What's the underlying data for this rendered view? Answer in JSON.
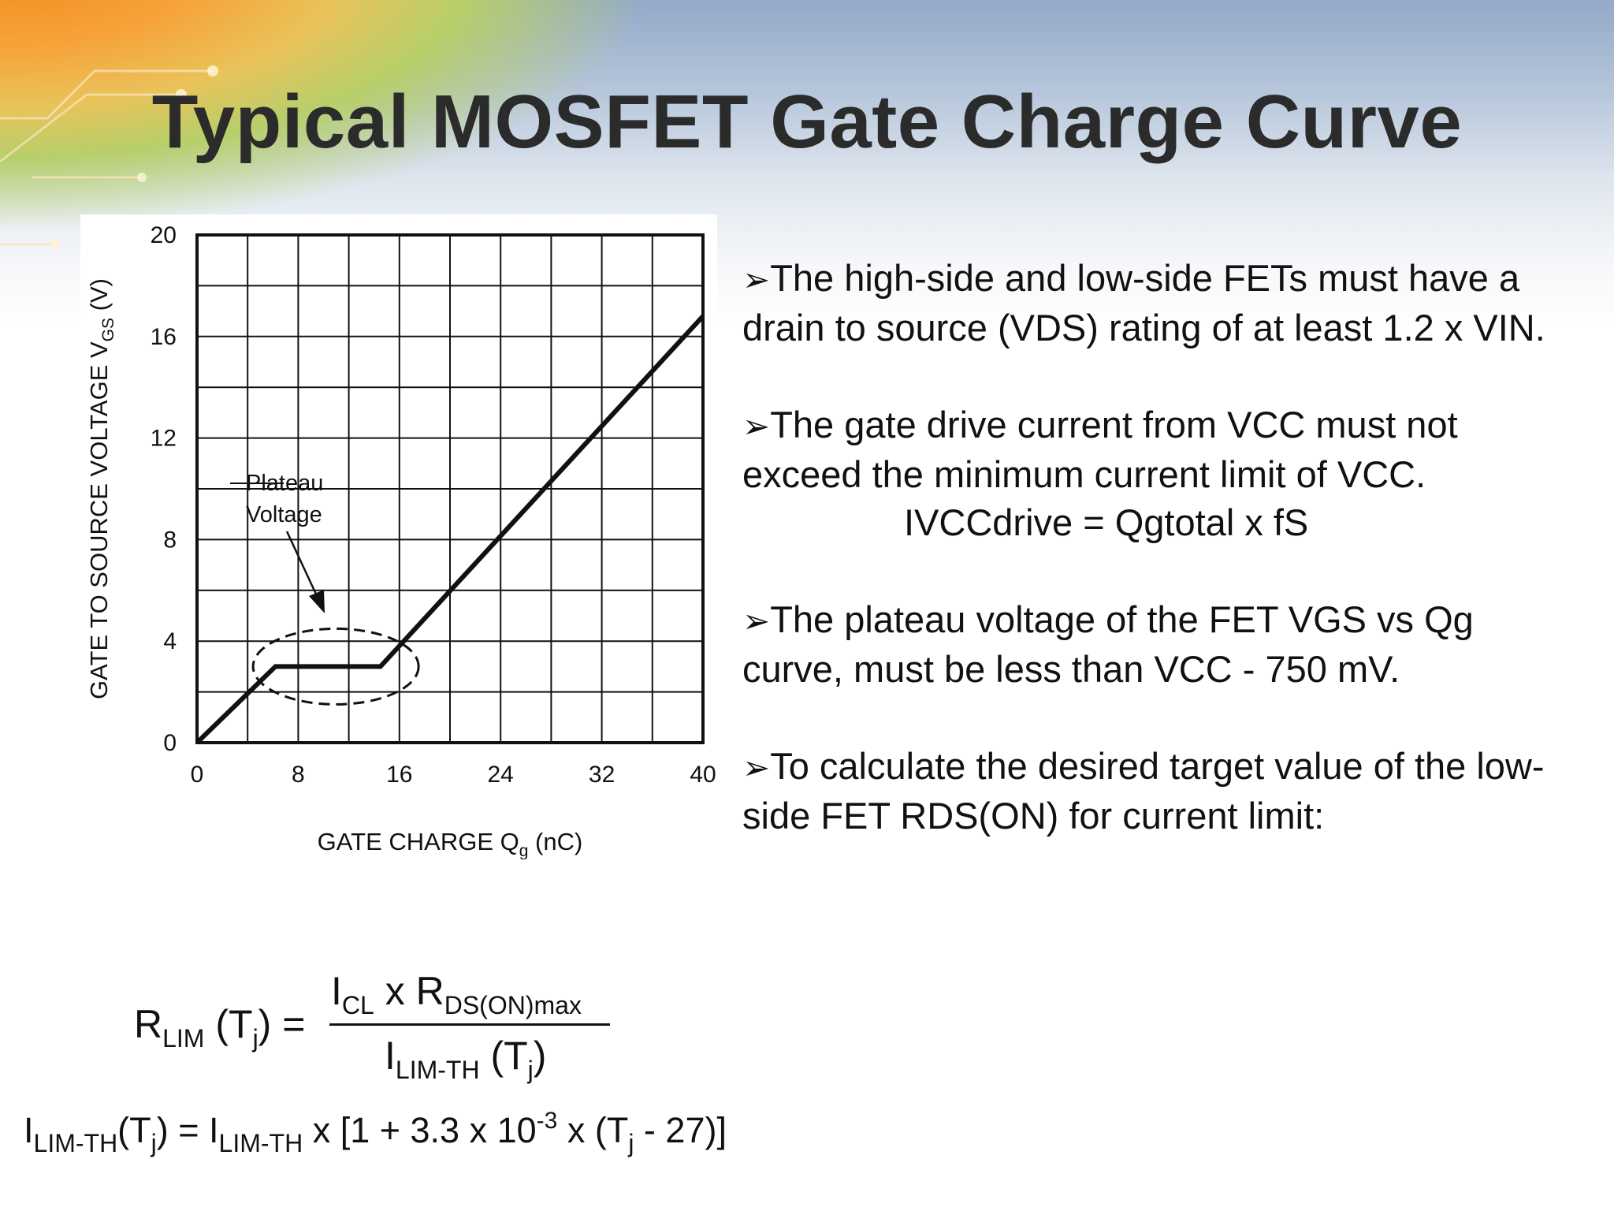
{
  "slide": {
    "title": "Typical MOSFET Gate Charge Curve",
    "colors": {
      "accent_orange": "#f28a1c",
      "sky_blue": "#93a9c9",
      "title_text": "#2b2b2b"
    }
  },
  "chart_data": {
    "type": "line",
    "title": "",
    "xlabel": "GATE CHARGE Qg (nC)",
    "ylabel": "GATE TO SOURCE VOLTAGE VGS (V)",
    "xlim": [
      0,
      40
    ],
    "ylim": [
      0,
      20
    ],
    "x_ticks": [
      "0",
      "8",
      "16",
      "24",
      "32",
      "40"
    ],
    "y_ticks": [
      "0",
      "4",
      "8",
      "12",
      "16",
      "20"
    ],
    "grid": true,
    "series": [
      {
        "x": [
          0,
          6.2,
          14.5,
          40
        ],
        "y": [
          0,
          3.0,
          3.0,
          16.8
        ]
      }
    ],
    "annotation": {
      "line1": "Plateau",
      "line2": "Voltage"
    }
  },
  "bullets": [
    {
      "text": "The high-side and low-side FETs must have a drain to source (VDS) rating of at least 1.2 x VIN."
    },
    {
      "text": "The gate drive current from VCC must not exceed the minimum  current limit of VCC.",
      "equation": "IVCCdrive = Qgtotal x fS"
    },
    {
      "text": "The plateau voltage of the FET VGS vs Qg curve, must be less than VCC - 750 mV."
    },
    {
      "text": "To calculate the desired target value of the low-side FET RDS(ON) for current limit:"
    }
  ],
  "formula": {
    "r": "R",
    "r_sub": "LIM",
    "tj_open": "(T",
    "tj_sub": "j",
    "tj_close": ") =",
    "num_i": "I",
    "num_i_sub": "CL",
    "num_x": " x R",
    "num_r_sub": "DS(ON)max",
    "den_i": "I",
    "den_i_sub": "LIM-TH",
    "den_tj_open": " (T",
    "den_tj_sub": "j",
    "den_tj_close": ")",
    "l2_i": "I",
    "l2_i_sub": "LIM-TH",
    "l2_tj_open": "(T",
    "l2_tj_sub": "j",
    "l2_eq": ") = I",
    "l2_i2_sub": "LIM-TH",
    "l2_mid": " x [1 + 3.3 x 10",
    "l2_exp": "-3",
    "l2_tail_open": " x (T",
    "l2_tail_sub": "j",
    "l2_tail_close": " - 27)]"
  }
}
